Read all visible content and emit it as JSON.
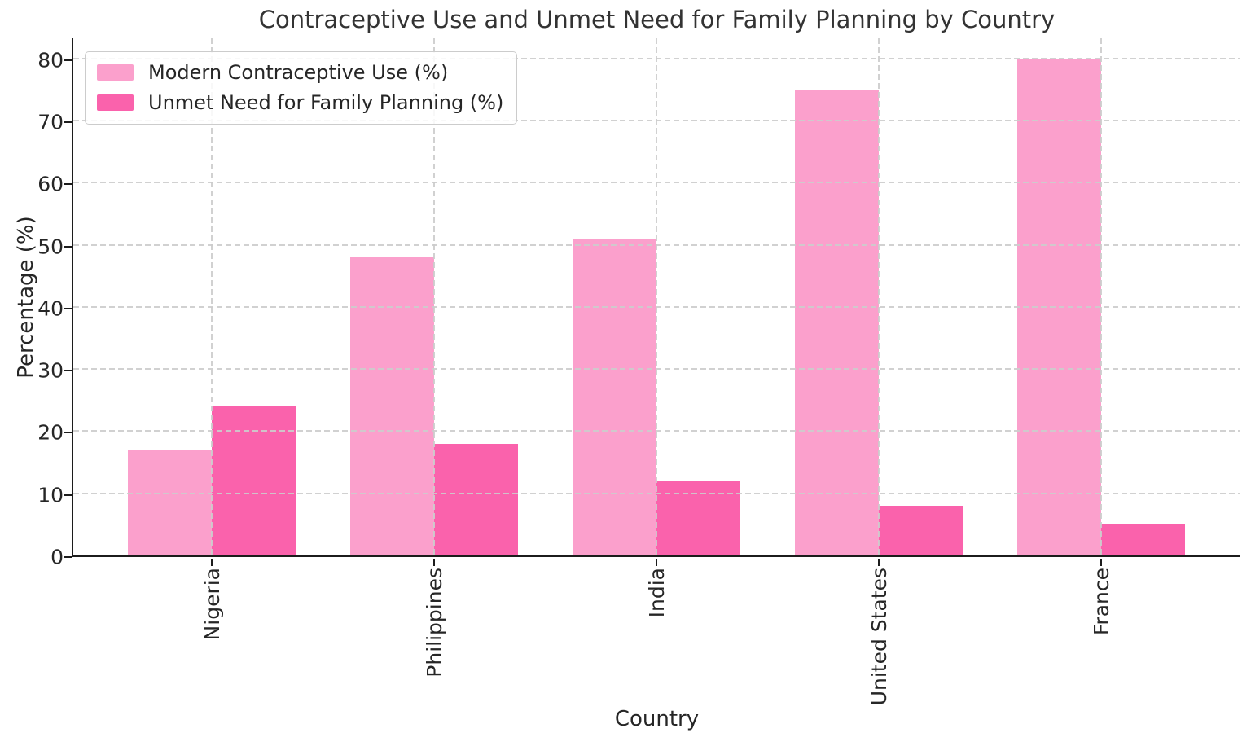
{
  "chart_data": {
    "type": "bar",
    "title": "Contraceptive Use and Unmet Need for Family Planning by Country",
    "xlabel": "Country",
    "ylabel": "Percentage (%)",
    "categories": [
      "Nigeria",
      "Philippines",
      "India",
      "United States",
      "France"
    ],
    "series": [
      {
        "name": "Modern Contraceptive Use (%)",
        "color": "#FBA0CC",
        "values": [
          17,
          48,
          51,
          75,
          80
        ]
      },
      {
        "name": "Unmet Need for Family Planning (%)",
        "color": "#FA62AC",
        "values": [
          24,
          18,
          12,
          8,
          5
        ]
      }
    ],
    "yticks": [
      0,
      10,
      20,
      30,
      40,
      50,
      60,
      70,
      80
    ],
    "ylim": [
      0,
      83.5
    ],
    "grid": "dashed",
    "grid_color": "#cccccc",
    "spine_color": "#1c1c1c",
    "legend_position": "upper-left"
  }
}
